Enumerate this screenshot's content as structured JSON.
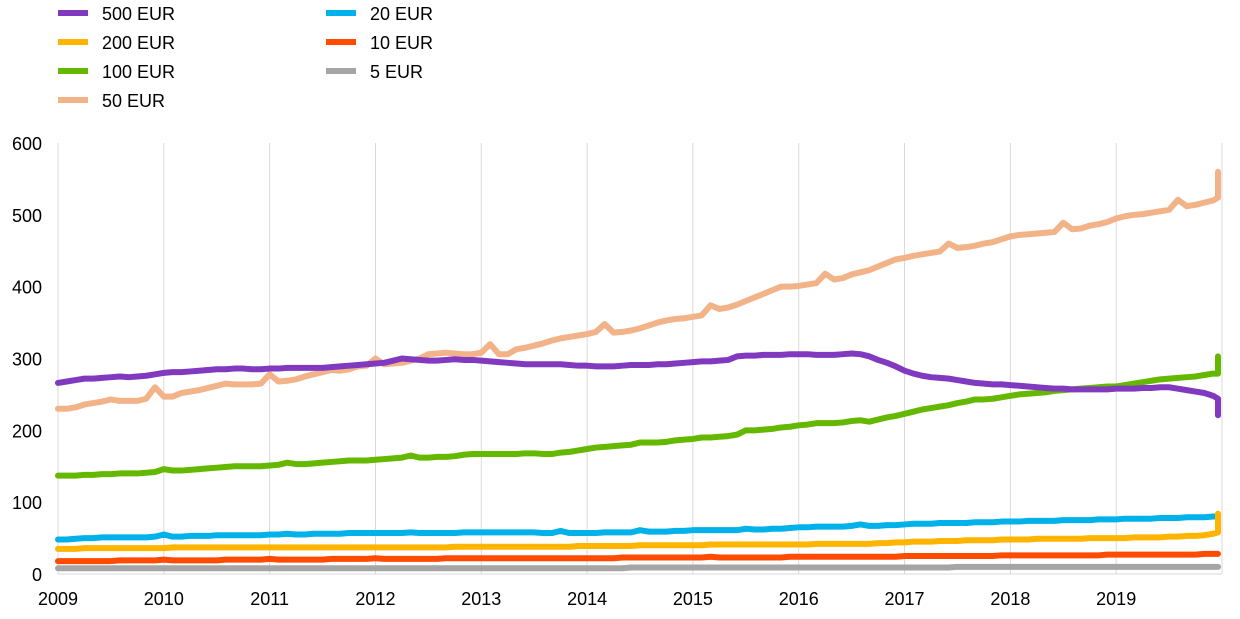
{
  "chart_data": {
    "type": "line",
    "title": "",
    "xlabel": "",
    "ylabel": "",
    "x_start": 2009.0,
    "x_step": 0.08333333,
    "xlim": [
      2009,
      2020
    ],
    "ylim": [
      0,
      600
    ],
    "x_ticks": [
      "2009",
      "2010",
      "2011",
      "2012",
      "2013",
      "2014",
      "2015",
      "2016",
      "2017",
      "2018",
      "2019"
    ],
    "y_ticks": [
      "0",
      "100",
      "200",
      "300",
      "400",
      "500",
      "600"
    ],
    "grid": "vertical",
    "legend_position": "top-left",
    "series": [
      {
        "name": "500 EUR",
        "color": "#8139c0",
        "values": [
          266,
          268,
          270,
          272,
          272,
          273,
          274,
          275,
          274,
          275,
          276,
          278,
          280,
          281,
          281,
          282,
          283,
          284,
          285,
          285,
          286,
          286,
          285,
          285,
          286,
          286,
          287,
          287,
          287,
          287,
          287,
          288,
          289,
          290,
          291,
          292,
          293,
          294,
          297,
          300,
          299,
          298,
          297,
          297,
          298,
          299,
          298,
          298,
          297,
          296,
          295,
          294,
          293,
          292,
          292,
          292,
          292,
          292,
          291,
          290,
          290,
          289,
          289,
          289,
          290,
          291,
          291,
          291,
          292,
          292,
          293,
          294,
          295,
          296,
          296,
          297,
          298,
          303,
          304,
          304,
          305,
          305,
          305,
          306,
          306,
          306,
          305,
          305,
          305,
          306,
          307,
          306,
          303,
          298,
          294,
          289,
          283,
          279,
          276,
          274,
          273,
          272,
          270,
          268,
          266,
          265,
          264,
          264,
          263,
          262,
          261,
          260,
          259,
          258,
          258,
          257,
          257,
          257,
          257,
          257,
          258,
          258,
          258,
          259,
          259,
          260,
          260,
          258,
          256,
          254,
          252,
          248,
          244,
          240,
          236,
          233,
          230,
          226,
          223,
          221
        ]
      },
      {
        "name": "200 EUR",
        "color": "#ffb400",
        "values": [
          35,
          35,
          35,
          36,
          36,
          36,
          36,
          36,
          36,
          36,
          36,
          36,
          36,
          37,
          37,
          37,
          37,
          37,
          37,
          37,
          37,
          37,
          37,
          37,
          37,
          37,
          37,
          37,
          37,
          37,
          37,
          37,
          37,
          37,
          37,
          37,
          37,
          37,
          37,
          37,
          37,
          37,
          37,
          37,
          37,
          38,
          38,
          38,
          38,
          38,
          38,
          38,
          38,
          38,
          38,
          38,
          38,
          38,
          38,
          39,
          39,
          39,
          39,
          39,
          39,
          39,
          40,
          40,
          40,
          40,
          40,
          40,
          40,
          40,
          41,
          41,
          41,
          41,
          41,
          41,
          41,
          41,
          41,
          41,
          41,
          41,
          42,
          42,
          42,
          42,
          42,
          42,
          42,
          43,
          43,
          44,
          44,
          45,
          45,
          45,
          46,
          46,
          46,
          47,
          47,
          47,
          47,
          48,
          48,
          48,
          48,
          49,
          49,
          49,
          49,
          49,
          49,
          50,
          50,
          50,
          50,
          50,
          51,
          51,
          51,
          51,
          52,
          52,
          53,
          53,
          54,
          56,
          58,
          61,
          64,
          67,
          70,
          73,
          76,
          80,
          84
        ]
      },
      {
        "name": "100 EUR",
        "color": "#65b800",
        "values": [
          137,
          137,
          137,
          138,
          138,
          139,
          139,
          140,
          140,
          140,
          141,
          142,
          146,
          144,
          144,
          145,
          146,
          147,
          148,
          149,
          150,
          150,
          150,
          150,
          151,
          152,
          155,
          153,
          153,
          154,
          155,
          156,
          157,
          158,
          158,
          158,
          159,
          160,
          161,
          162,
          165,
          162,
          162,
          163,
          163,
          164,
          166,
          167,
          167,
          167,
          167,
          167,
          167,
          168,
          168,
          167,
          167,
          169,
          170,
          172,
          174,
          176,
          177,
          178,
          179,
          180,
          183,
          183,
          183,
          184,
          186,
          187,
          188,
          190,
          190,
          191,
          192,
          194,
          200,
          200,
          201,
          202,
          204,
          205,
          207,
          208,
          210,
          210,
          210,
          211,
          213,
          214,
          212,
          215,
          218,
          220,
          223,
          226,
          229,
          231,
          233,
          235,
          238,
          240,
          243,
          243,
          244,
          246,
          248,
          250,
          251,
          252,
          253,
          255,
          256,
          257,
          258,
          259,
          260,
          261,
          261,
          263,
          265,
          267,
          269,
          271,
          272,
          273,
          274,
          275,
          277,
          279,
          279,
          281,
          283,
          285,
          288,
          290,
          292,
          294,
          296,
          299,
          303
        ]
      },
      {
        "name": "50 EUR",
        "color": "#f3b389",
        "values": [
          230,
          230,
          232,
          236,
          238,
          240,
          243,
          241,
          241,
          241,
          244,
          260,
          247,
          247,
          252,
          254,
          256,
          259,
          262,
          265,
          264,
          264,
          264,
          265,
          278,
          268,
          269,
          271,
          275,
          278,
          281,
          284,
          283,
          285,
          289,
          290,
          300,
          292,
          293,
          294,
          297,
          300,
          306,
          307,
          308,
          307,
          306,
          306,
          308,
          320,
          306,
          306,
          313,
          315,
          318,
          321,
          325,
          328,
          330,
          332,
          334,
          337,
          348,
          336,
          337,
          339,
          342,
          346,
          350,
          353,
          355,
          356,
          358,
          360,
          374,
          369,
          371,
          375,
          380,
          385,
          390,
          395,
          400,
          400,
          401,
          403,
          405,
          418,
          410,
          412,
          417,
          420,
          423,
          428,
          433,
          438,
          440,
          443,
          445,
          447,
          449,
          460,
          454,
          455,
          457,
          460,
          462,
          466,
          470,
          472,
          473,
          474,
          475,
          476,
          489,
          480,
          481,
          485,
          487,
          490,
          495,
          498,
          500,
          501,
          503,
          505,
          507,
          521,
          512,
          514,
          517,
          520,
          524,
          528,
          532,
          536,
          538,
          540,
          543,
          547,
          560
        ]
      },
      {
        "name": "20 EUR",
        "color": "#00b1ea",
        "values": [
          48,
          48,
          49,
          50,
          50,
          51,
          51,
          51,
          51,
          51,
          51,
          52,
          55,
          52,
          52,
          53,
          53,
          53,
          54,
          54,
          54,
          54,
          54,
          54,
          55,
          55,
          56,
          55,
          55,
          56,
          56,
          56,
          56,
          57,
          57,
          57,
          57,
          57,
          57,
          57,
          58,
          57,
          57,
          57,
          57,
          57,
          58,
          58,
          58,
          58,
          58,
          58,
          58,
          58,
          58,
          57,
          57,
          60,
          57,
          57,
          57,
          57,
          58,
          58,
          58,
          58,
          61,
          59,
          59,
          59,
          60,
          60,
          61,
          61,
          61,
          61,
          61,
          61,
          63,
          62,
          62,
          63,
          63,
          64,
          65,
          65,
          66,
          66,
          66,
          66,
          67,
          69,
          67,
          67,
          68,
          68,
          69,
          70,
          70,
          70,
          71,
          71,
          71,
          71,
          72,
          72,
          72,
          73,
          73,
          73,
          74,
          74,
          74,
          74,
          75,
          75,
          75,
          75,
          76,
          76,
          76,
          77,
          77,
          77,
          77,
          78,
          78,
          78,
          79,
          79,
          79,
          80,
          80,
          80,
          80,
          81,
          81,
          81,
          81,
          82,
          82
        ]
      },
      {
        "name": "10 EUR",
        "color": "#ff4b00",
        "values": [
          18,
          18,
          18,
          18,
          18,
          18,
          18,
          19,
          19,
          19,
          19,
          19,
          20,
          19,
          19,
          19,
          19,
          19,
          19,
          20,
          20,
          20,
          20,
          20,
          21,
          20,
          20,
          20,
          20,
          20,
          20,
          21,
          21,
          21,
          21,
          21,
          22,
          21,
          21,
          21,
          21,
          21,
          21,
          21,
          22,
          22,
          22,
          22,
          22,
          22,
          22,
          22,
          22,
          22,
          22,
          22,
          22,
          22,
          22,
          22,
          22,
          22,
          22,
          22,
          23,
          23,
          23,
          23,
          23,
          23,
          23,
          23,
          23,
          23,
          24,
          23,
          23,
          23,
          23,
          23,
          23,
          23,
          23,
          24,
          24,
          24,
          24,
          24,
          24,
          24,
          24,
          24,
          24,
          24,
          24,
          24,
          25,
          25,
          25,
          25,
          25,
          25,
          25,
          25,
          25,
          25,
          25,
          26,
          26,
          26,
          26,
          26,
          26,
          26,
          26,
          26,
          26,
          26,
          26,
          27,
          27,
          27,
          27,
          27,
          27,
          27,
          27,
          27,
          27,
          27,
          28,
          28,
          28,
          28,
          28,
          28,
          28,
          28,
          28,
          28,
          28
        ]
      },
      {
        "name": "5 EUR",
        "color": "#a5a5a5",
        "values": [
          8,
          8,
          8,
          8,
          8,
          8,
          8,
          8,
          8,
          8,
          8,
          8,
          8,
          8,
          8,
          8,
          8,
          8,
          8,
          8,
          8,
          8,
          8,
          8,
          8,
          8,
          8,
          8,
          8,
          8,
          8,
          8,
          8,
          8,
          8,
          8,
          8,
          8,
          8,
          8,
          8,
          8,
          8,
          8,
          8,
          8,
          8,
          8,
          8,
          8,
          8,
          8,
          8,
          8,
          8,
          8,
          8,
          8,
          8,
          8,
          8,
          8,
          8,
          8,
          8,
          9,
          9,
          9,
          9,
          9,
          9,
          9,
          9,
          9,
          9,
          9,
          9,
          9,
          9,
          9,
          9,
          9,
          9,
          9,
          9,
          9,
          9,
          9,
          9,
          9,
          9,
          9,
          9,
          9,
          9,
          9,
          9,
          9,
          9,
          9,
          9,
          9,
          10,
          10,
          10,
          10,
          10,
          10,
          10,
          10,
          10,
          10,
          10,
          10,
          10,
          10,
          10,
          10,
          10,
          10,
          10,
          10,
          10,
          10,
          10,
          10,
          10,
          10,
          10,
          10,
          10,
          10,
          10,
          10,
          10,
          10,
          10,
          10,
          10,
          10,
          10,
          10
        ]
      }
    ]
  }
}
